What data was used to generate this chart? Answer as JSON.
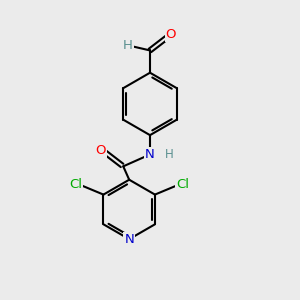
{
  "bg_color": "#ebebeb",
  "bond_color": "#000000",
  "bond_width": 1.5,
  "atom_colors": {
    "C": "#000000",
    "H": "#5a9090",
    "O": "#ff0000",
    "N": "#0000cc",
    "Cl": "#00aa00"
  },
  "font_size": 9.5
}
